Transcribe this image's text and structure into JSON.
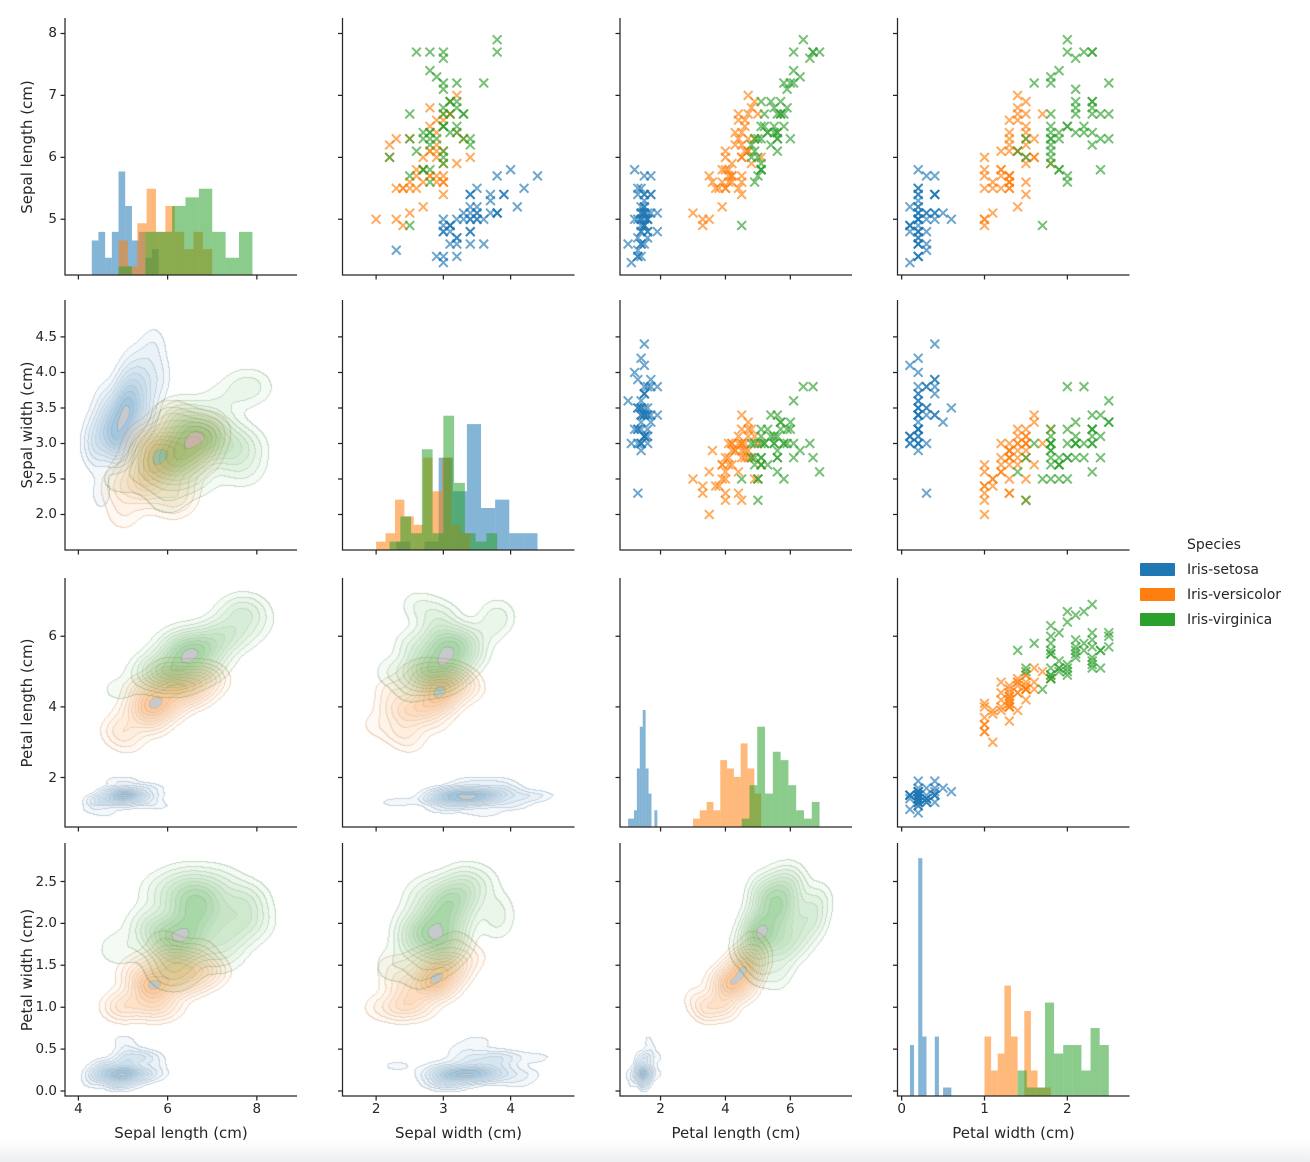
{
  "figure": {
    "background": "#ffffff",
    "text_color": "#262626",
    "spine_color": "#262626"
  },
  "chart_data": {
    "type": "pairplot",
    "layout_hints": {
      "upper_triangle": "scatter",
      "diagonal": "histogram",
      "lower_triangle": "kde-filled-contours",
      "marker": "x",
      "grid": "off",
      "legend_position": "right"
    },
    "variables": [
      "Sepal length (cm)",
      "Sepal width (cm)",
      "Petal length (cm)",
      "Petal width (cm)"
    ],
    "columns": [
      "sepal_length",
      "sepal_width",
      "petal_length",
      "petal_width"
    ],
    "axes": {
      "x": [
        {
          "range": [
            3.7,
            8.9
          ],
          "ticks": [
            {
              "v": 4,
              "label": "4"
            },
            {
              "v": 6,
              "label": "6"
            },
            {
              "v": 8,
              "label": "8"
            }
          ]
        },
        {
          "range": [
            1.5,
            4.95
          ],
          "ticks": [
            {
              "v": 2,
              "label": "2"
            },
            {
              "v": 3,
              "label": "3"
            },
            {
              "v": 4,
              "label": "4"
            }
          ]
        },
        {
          "range": [
            0.75,
            7.9
          ],
          "ticks": [
            {
              "v": 2,
              "label": "2"
            },
            {
              "v": 4,
              "label": "4"
            },
            {
              "v": 6,
              "label": "6"
            }
          ]
        },
        {
          "range": [
            -0.05,
            2.75
          ],
          "ticks": [
            {
              "v": 0,
              "label": "0"
            },
            {
              "v": 1,
              "label": "1"
            },
            {
              "v": 2,
              "label": "2"
            }
          ]
        }
      ],
      "y": [
        {
          "range": [
            4.1,
            8.25
          ],
          "ticks": [
            {
              "v": 5,
              "label": "5"
            },
            {
              "v": 6,
              "label": "6"
            },
            {
              "v": 7,
              "label": "7"
            },
            {
              "v": 8,
              "label": "8"
            }
          ]
        },
        {
          "range": [
            1.5,
            5.02
          ],
          "ticks": [
            {
              "v": 2.0,
              "label": "2.0"
            },
            {
              "v": 2.5,
              "label": "2.5"
            },
            {
              "v": 3.0,
              "label": "3.0"
            },
            {
              "v": 3.5,
              "label": "3.5"
            },
            {
              "v": 4.0,
              "label": "4.0"
            },
            {
              "v": 4.5,
              "label": "4.5"
            }
          ]
        },
        {
          "range": [
            0.6,
            7.65
          ],
          "ticks": [
            {
              "v": 2,
              "label": "2"
            },
            {
              "v": 4,
              "label": "4"
            },
            {
              "v": 6,
              "label": "6"
            }
          ]
        },
        {
          "range": [
            -0.06,
            2.96
          ],
          "ticks": [
            {
              "v": 0.0,
              "label": "0.0"
            },
            {
              "v": 0.5,
              "label": "0.5"
            },
            {
              "v": 1.0,
              "label": "1.0"
            },
            {
              "v": 1.5,
              "label": "1.5"
            },
            {
              "v": 2.0,
              "label": "2.0"
            },
            {
              "v": 2.5,
              "label": "2.5"
            }
          ]
        }
      ]
    },
    "legend": {
      "title": "Species",
      "entries": [
        {
          "label": "Iris-setosa",
          "color": "#1f77b4"
        },
        {
          "label": "Iris-versicolor",
          "color": "#ff7f0e"
        },
        {
          "label": "Iris-virginica",
          "color": "#2ca02c"
        }
      ]
    },
    "series": [
      {
        "name": "Iris-setosa",
        "color": "#1f77b4",
        "rows": [
          [
            5.1,
            3.5,
            1.4,
            0.2
          ],
          [
            4.9,
            3.0,
            1.4,
            0.2
          ],
          [
            4.7,
            3.2,
            1.3,
            0.2
          ],
          [
            4.6,
            3.1,
            1.5,
            0.2
          ],
          [
            5.0,
            3.6,
            1.4,
            0.2
          ],
          [
            5.4,
            3.9,
            1.7,
            0.4
          ],
          [
            4.6,
            3.4,
            1.4,
            0.3
          ],
          [
            5.0,
            3.4,
            1.5,
            0.2
          ],
          [
            4.4,
            2.9,
            1.4,
            0.2
          ],
          [
            4.9,
            3.1,
            1.5,
            0.1
          ],
          [
            5.4,
            3.7,
            1.5,
            0.2
          ],
          [
            4.8,
            3.4,
            1.6,
            0.2
          ],
          [
            4.8,
            3.0,
            1.4,
            0.1
          ],
          [
            4.3,
            3.0,
            1.1,
            0.1
          ],
          [
            5.8,
            4.0,
            1.2,
            0.2
          ],
          [
            5.7,
            4.4,
            1.5,
            0.4
          ],
          [
            5.4,
            3.9,
            1.3,
            0.4
          ],
          [
            5.1,
            3.5,
            1.4,
            0.3
          ],
          [
            5.7,
            3.8,
            1.7,
            0.3
          ],
          [
            5.1,
            3.8,
            1.5,
            0.3
          ],
          [
            5.4,
            3.4,
            1.7,
            0.2
          ],
          [
            5.1,
            3.7,
            1.5,
            0.4
          ],
          [
            4.6,
            3.6,
            1.0,
            0.2
          ],
          [
            5.1,
            3.3,
            1.7,
            0.5
          ],
          [
            4.8,
            3.4,
            1.9,
            0.2
          ],
          [
            5.0,
            3.0,
            1.6,
            0.2
          ],
          [
            5.0,
            3.4,
            1.6,
            0.4
          ],
          [
            5.2,
            3.5,
            1.5,
            0.2
          ],
          [
            5.2,
            3.4,
            1.4,
            0.2
          ],
          [
            4.7,
            3.2,
            1.6,
            0.2
          ],
          [
            4.8,
            3.1,
            1.6,
            0.2
          ],
          [
            5.4,
            3.4,
            1.5,
            0.4
          ],
          [
            5.2,
            4.1,
            1.5,
            0.1
          ],
          [
            5.5,
            4.2,
            1.4,
            0.2
          ],
          [
            4.9,
            3.1,
            1.5,
            0.1
          ],
          [
            5.0,
            3.2,
            1.2,
            0.2
          ],
          [
            5.5,
            3.5,
            1.3,
            0.2
          ],
          [
            4.9,
            3.1,
            1.5,
            0.1
          ],
          [
            4.4,
            3.0,
            1.3,
            0.2
          ],
          [
            5.1,
            3.4,
            1.5,
            0.2
          ],
          [
            5.0,
            3.5,
            1.3,
            0.3
          ],
          [
            4.5,
            2.3,
            1.3,
            0.3
          ],
          [
            4.4,
            3.2,
            1.3,
            0.2
          ],
          [
            5.0,
            3.5,
            1.6,
            0.6
          ],
          [
            5.1,
            3.8,
            1.9,
            0.4
          ],
          [
            4.8,
            3.0,
            1.4,
            0.3
          ],
          [
            5.1,
            3.8,
            1.6,
            0.2
          ],
          [
            4.6,
            3.2,
            1.4,
            0.2
          ],
          [
            5.3,
            3.7,
            1.5,
            0.2
          ],
          [
            5.0,
            3.3,
            1.4,
            0.2
          ]
        ]
      },
      {
        "name": "Iris-versicolor",
        "color": "#ff7f0e",
        "rows": [
          [
            7.0,
            3.2,
            4.7,
            1.4
          ],
          [
            6.4,
            3.2,
            4.5,
            1.5
          ],
          [
            6.9,
            3.1,
            4.9,
            1.5
          ],
          [
            5.5,
            2.3,
            4.0,
            1.3
          ],
          [
            6.5,
            2.8,
            4.6,
            1.5
          ],
          [
            5.7,
            2.8,
            4.5,
            1.3
          ],
          [
            6.3,
            3.3,
            4.7,
            1.6
          ],
          [
            4.9,
            2.4,
            3.3,
            1.0
          ],
          [
            6.6,
            2.9,
            4.6,
            1.3
          ],
          [
            5.2,
            2.7,
            3.9,
            1.4
          ],
          [
            5.0,
            2.0,
            3.5,
            1.0
          ],
          [
            5.9,
            3.0,
            4.2,
            1.5
          ],
          [
            6.0,
            2.2,
            4.0,
            1.0
          ],
          [
            6.1,
            2.9,
            4.7,
            1.4
          ],
          [
            5.6,
            2.9,
            3.6,
            1.3
          ],
          [
            6.7,
            3.1,
            4.4,
            1.4
          ],
          [
            5.6,
            3.0,
            4.5,
            1.5
          ],
          [
            5.8,
            2.7,
            4.1,
            1.0
          ],
          [
            6.2,
            2.2,
            4.5,
            1.5
          ],
          [
            5.6,
            2.5,
            3.9,
            1.1
          ],
          [
            5.9,
            3.2,
            4.8,
            1.8
          ],
          [
            6.1,
            2.8,
            4.0,
            1.3
          ],
          [
            6.3,
            2.5,
            4.9,
            1.5
          ],
          [
            6.1,
            2.8,
            4.7,
            1.2
          ],
          [
            6.4,
            2.9,
            4.3,
            1.3
          ],
          [
            6.6,
            3.0,
            4.4,
            1.4
          ],
          [
            6.8,
            2.8,
            4.8,
            1.4
          ],
          [
            6.7,
            3.0,
            5.0,
            1.7
          ],
          [
            6.0,
            2.9,
            4.5,
            1.5
          ],
          [
            5.7,
            2.6,
            3.5,
            1.0
          ],
          [
            5.5,
            2.4,
            3.8,
            1.1
          ],
          [
            5.5,
            2.4,
            3.7,
            1.0
          ],
          [
            5.8,
            2.7,
            3.9,
            1.2
          ],
          [
            6.0,
            2.7,
            5.1,
            1.6
          ],
          [
            5.4,
            3.0,
            4.5,
            1.5
          ],
          [
            6.0,
            3.4,
            4.5,
            1.6
          ],
          [
            6.7,
            3.1,
            4.7,
            1.5
          ],
          [
            6.3,
            2.3,
            4.4,
            1.3
          ],
          [
            5.6,
            3.0,
            4.1,
            1.3
          ],
          [
            5.5,
            2.5,
            4.0,
            1.3
          ],
          [
            5.5,
            2.6,
            4.4,
            1.2
          ],
          [
            6.1,
            3.0,
            4.6,
            1.4
          ],
          [
            5.8,
            2.6,
            4.0,
            1.2
          ],
          [
            5.0,
            2.3,
            3.3,
            1.0
          ],
          [
            5.6,
            2.7,
            4.2,
            1.3
          ],
          [
            5.7,
            3.0,
            4.2,
            1.2
          ],
          [
            5.7,
            2.9,
            4.2,
            1.3
          ],
          [
            6.2,
            2.9,
            4.3,
            1.3
          ],
          [
            5.1,
            2.5,
            3.0,
            1.1
          ],
          [
            5.7,
            2.8,
            4.1,
            1.3
          ]
        ]
      },
      {
        "name": "Iris-virginica",
        "color": "#2ca02c",
        "rows": [
          [
            6.3,
            3.3,
            6.0,
            2.5
          ],
          [
            5.8,
            2.7,
            5.1,
            1.9
          ],
          [
            7.1,
            3.0,
            5.9,
            2.1
          ],
          [
            6.3,
            2.9,
            5.6,
            1.8
          ],
          [
            6.5,
            3.0,
            5.8,
            2.2
          ],
          [
            7.6,
            3.0,
            6.6,
            2.1
          ],
          [
            4.9,
            2.5,
            4.5,
            1.7
          ],
          [
            7.3,
            2.9,
            6.3,
            1.8
          ],
          [
            6.7,
            2.5,
            5.8,
            1.8
          ],
          [
            7.2,
            3.6,
            6.1,
            2.5
          ],
          [
            6.5,
            3.2,
            5.1,
            2.0
          ],
          [
            6.4,
            2.7,
            5.3,
            1.9
          ],
          [
            6.8,
            3.0,
            5.5,
            2.1
          ],
          [
            5.7,
            2.5,
            5.0,
            2.0
          ],
          [
            5.8,
            2.8,
            5.1,
            2.4
          ],
          [
            6.4,
            3.2,
            5.3,
            2.3
          ],
          [
            6.5,
            3.0,
            5.5,
            1.8
          ],
          [
            7.7,
            3.8,
            6.7,
            2.2
          ],
          [
            7.7,
            2.6,
            6.9,
            2.3
          ],
          [
            6.0,
            2.2,
            5.0,
            1.5
          ],
          [
            6.9,
            3.2,
            5.7,
            2.3
          ],
          [
            5.6,
            2.8,
            4.9,
            2.0
          ],
          [
            7.7,
            2.8,
            6.7,
            2.0
          ],
          [
            6.3,
            2.7,
            4.9,
            1.8
          ],
          [
            6.7,
            3.3,
            5.7,
            2.1
          ],
          [
            7.2,
            3.2,
            6.0,
            1.8
          ],
          [
            6.2,
            2.8,
            4.8,
            1.8
          ],
          [
            6.1,
            3.0,
            4.9,
            1.8
          ],
          [
            6.4,
            2.8,
            5.6,
            2.1
          ],
          [
            7.2,
            3.0,
            5.8,
            1.6
          ],
          [
            7.4,
            2.8,
            6.1,
            1.9
          ],
          [
            7.9,
            3.8,
            6.4,
            2.0
          ],
          [
            6.4,
            2.8,
            5.6,
            2.2
          ],
          [
            6.3,
            2.8,
            5.1,
            1.5
          ],
          [
            6.1,
            2.6,
            5.6,
            1.4
          ],
          [
            7.7,
            3.0,
            6.1,
            2.3
          ],
          [
            6.3,
            3.4,
            5.6,
            2.4
          ],
          [
            6.4,
            3.1,
            5.5,
            1.8
          ],
          [
            6.0,
            3.0,
            4.8,
            1.8
          ],
          [
            6.9,
            3.1,
            5.4,
            2.1
          ],
          [
            6.7,
            3.1,
            5.6,
            2.4
          ],
          [
            6.9,
            3.1,
            5.1,
            2.3
          ],
          [
            5.8,
            2.7,
            5.1,
            1.9
          ],
          [
            6.8,
            3.2,
            5.9,
            2.3
          ],
          [
            6.7,
            3.3,
            5.7,
            2.5
          ],
          [
            6.7,
            3.0,
            5.2,
            2.3
          ],
          [
            6.3,
            2.5,
            5.0,
            1.9
          ],
          [
            6.5,
            3.0,
            5.2,
            2.0
          ],
          [
            6.2,
            3.4,
            5.4,
            2.3
          ],
          [
            5.9,
            3.0,
            5.1,
            1.8
          ]
        ]
      }
    ]
  }
}
